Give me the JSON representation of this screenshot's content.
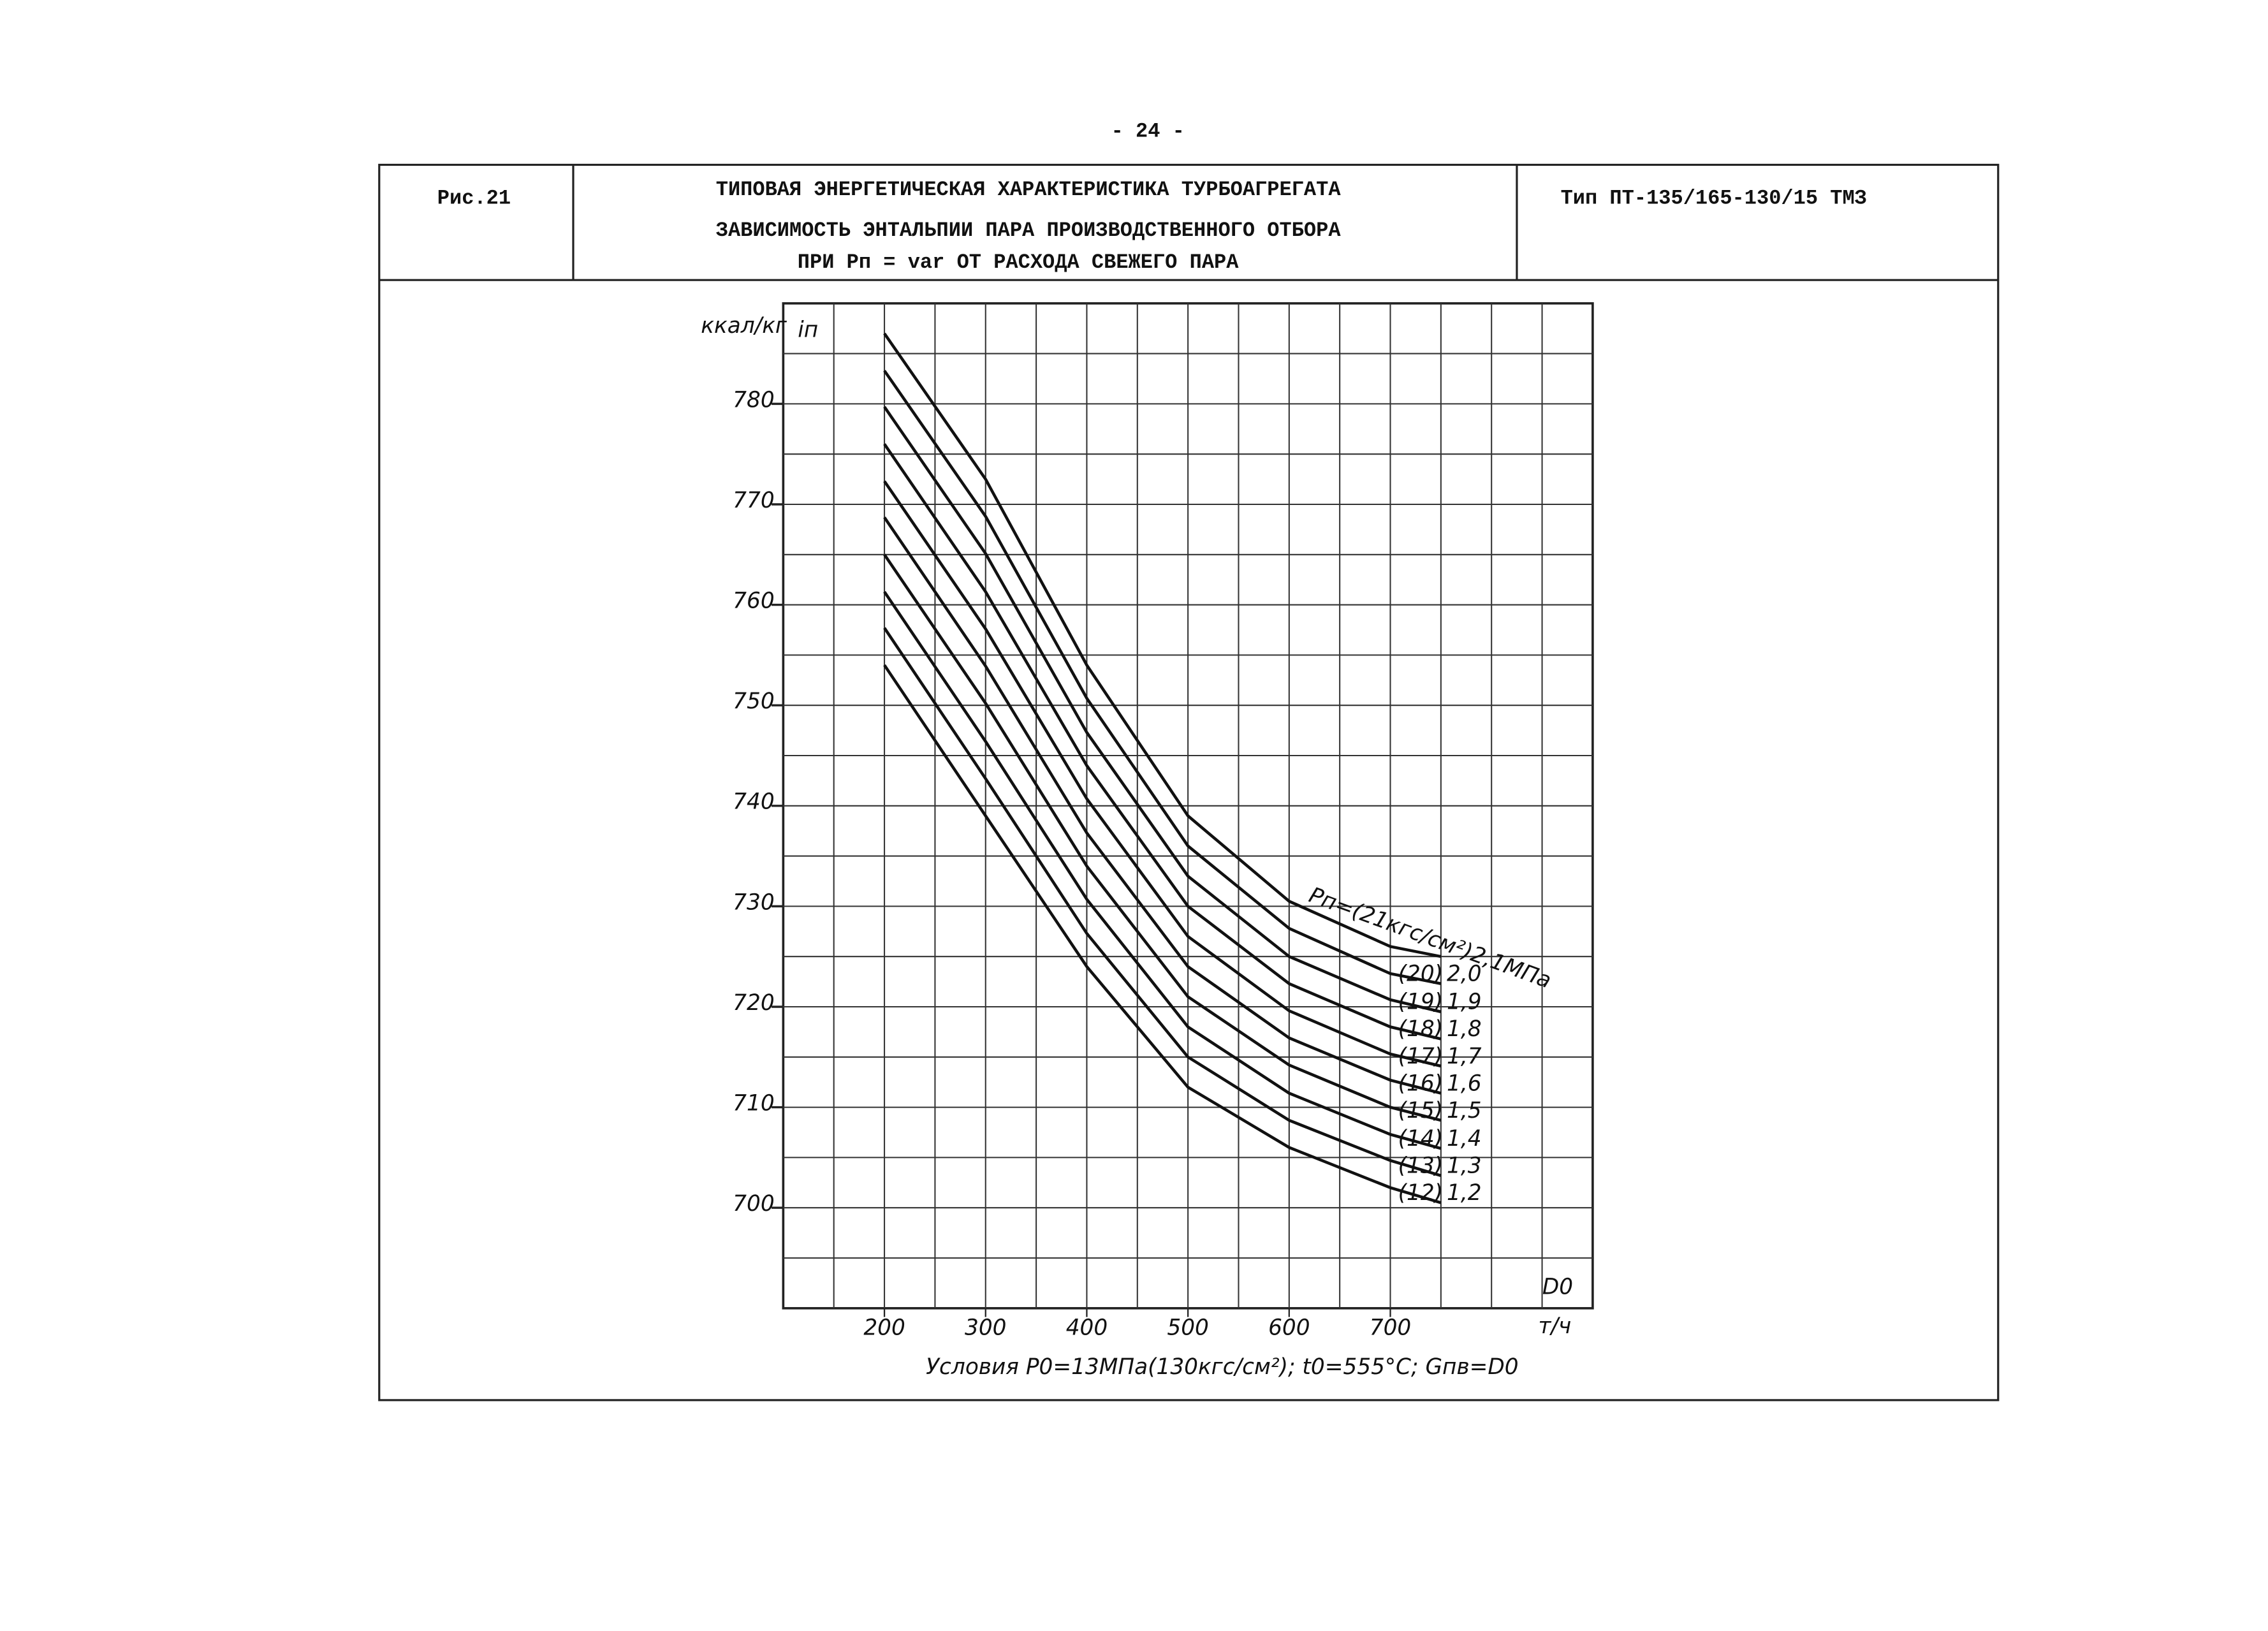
{
  "page_number": "- 24 -",
  "header": {
    "figure": "Рис.21",
    "title_lines": [
      "ТИПОВАЯ ЭНЕРГЕТИЧЕСКАЯ ХАРАКТЕРИСТИКА ТУРБОАГРЕГАТА",
      "ЗАВИСИМОСТЬ ЭНТАЛЬПИИ ПАРА ПРОИЗВОДСТВЕННОГО ОТБОРА",
      "ПРИ Pп = var  ОТ РАСХОДА СВЕЖЕГО ПАРА"
    ],
    "type": "Тип ПТ-135/165-130/15 ТМЗ"
  },
  "chart_data": {
    "type": "line",
    "y_unit": "ккал/кг",
    "y_label": "iп",
    "x_label": "D0",
    "x_unit": "т/ч",
    "conditions": "Условия  P0=13МПа(130кгс/см²);   t0=555°C;   Gпв=D0",
    "x": [
      200,
      300,
      400,
      500,
      600,
      700,
      750
    ],
    "xlim": [
      100,
      900
    ],
    "ylim": [
      690,
      790
    ],
    "xticks": [
      200,
      300,
      400,
      500,
      600,
      700
    ],
    "yticks": [
      700,
      710,
      720,
      730,
      740,
      750,
      760,
      770,
      780
    ],
    "xgrid": [
      150,
      200,
      250,
      300,
      350,
      400,
      450,
      500,
      550,
      600,
      650,
      700,
      750,
      800,
      850
    ],
    "ygrid": [
      695,
      700,
      705,
      710,
      715,
      720,
      725,
      730,
      735,
      740,
      745,
      750,
      755,
      760,
      765,
      770,
      775,
      780,
      785
    ],
    "grid": true,
    "series": [
      {
        "name": "1,2",
        "tag": "(12)",
        "color": "#111",
        "values": [
          754,
          739,
          724,
          712,
          706,
          702,
          700.5
        ]
      },
      {
        "name": "1,3",
        "tag": "(13)",
        "color": "#111",
        "values": [
          757.7,
          742.7,
          727.3,
          715,
          708.7,
          704.7,
          703.2
        ]
      },
      {
        "name": "1,4",
        "tag": "(14)",
        "color": "#111",
        "values": [
          761.3,
          746.4,
          730.7,
          718,
          711.4,
          707.3,
          705.9
        ]
      },
      {
        "name": "1,5",
        "tag": "(15)",
        "color": "#111",
        "values": [
          765,
          750.2,
          734,
          721,
          714.2,
          710,
          708.7
        ]
      },
      {
        "name": "1,6",
        "tag": "(16)",
        "color": "#111",
        "values": [
          768.7,
          753.9,
          737.3,
          724,
          716.9,
          712.7,
          711.4
        ]
      },
      {
        "name": "1,7",
        "tag": "(17)",
        "color": "#111",
        "values": [
          772.3,
          757.6,
          740.7,
          727,
          719.6,
          715.3,
          714.1
        ]
      },
      {
        "name": "1,8",
        "tag": "(18)",
        "color": "#111",
        "values": [
          776,
          761.3,
          744,
          730,
          722.3,
          718,
          716.8
        ]
      },
      {
        "name": "1,9",
        "tag": "(19)",
        "color": "#111",
        "values": [
          779.7,
          765.1,
          747.3,
          733,
          725,
          720.7,
          719.5
        ]
      },
      {
        "name": "2,0",
        "tag": "(20)",
        "color": "#111",
        "values": [
          783.3,
          768.8,
          750.7,
          736,
          727.8,
          723.3,
          722.3
        ]
      },
      {
        "name": "Pп=(21кгс/см²)2,1МПа",
        "color": "#111",
        "values": [
          787,
          772.5,
          754,
          739,
          730.5,
          726,
          725
        ]
      }
    ]
  }
}
